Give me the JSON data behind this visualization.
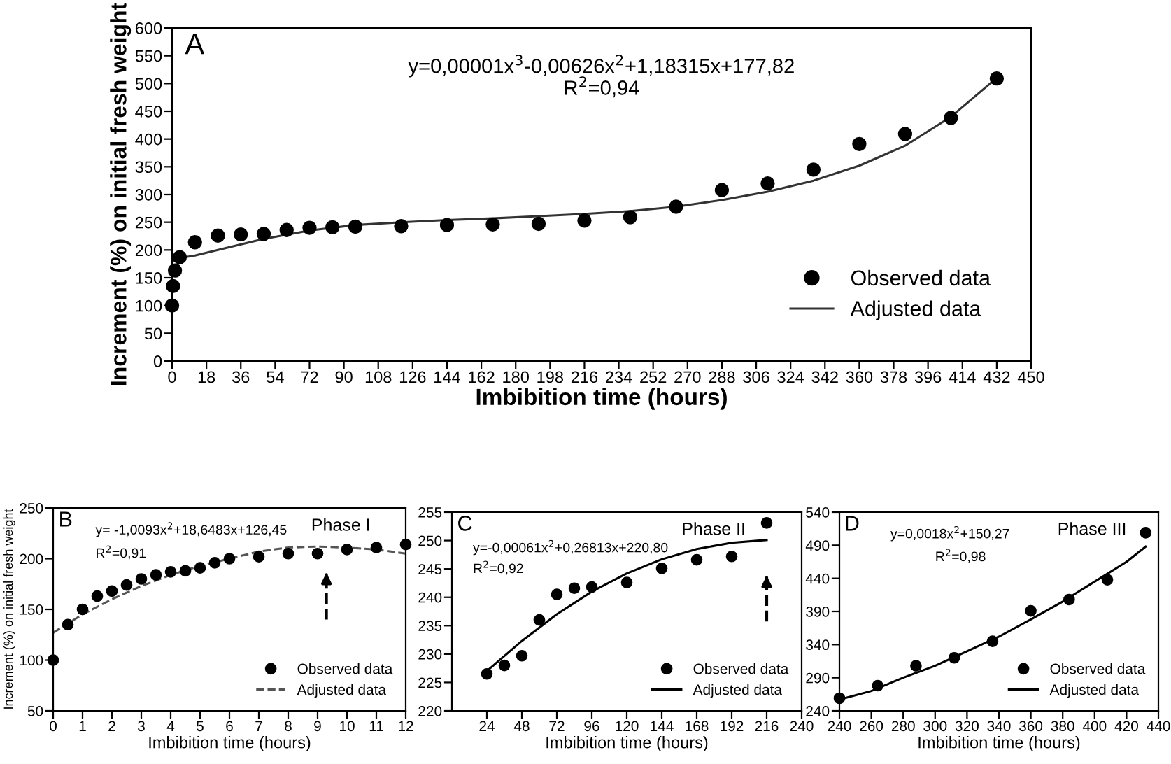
{
  "chart_data": [
    {
      "type": "scatter",
      "xlabel": "Imbibition time (hours)",
      "ylabel": "Increment (%) on initial fresh weight",
      "xlim": [
        0,
        450
      ],
      "ylim": [
        0,
        600
      ],
      "xticks": [
        0,
        18,
        36,
        54,
        72,
        90,
        108,
        126,
        144,
        162,
        180,
        198,
        216,
        234,
        252,
        270,
        288,
        306,
        324,
        342,
        360,
        378,
        396,
        414,
        432,
        450
      ],
      "yticks": [
        0,
        50,
        100,
        150,
        200,
        250,
        300,
        350,
        400,
        450,
        500,
        550,
        600
      ],
      "annotations": [
        "A",
        "y=0,00001x$^{3}$-0,00626x$^{2}$+1,18315x+177,82",
        "R$^{2}$=0,94"
      ],
      "legend": "bottom right",
      "grid": false,
      "series": [
        {
          "name": "Observed data",
          "marker": "circle",
          "color": "#000000",
          "x": [
            0,
            0.5,
            1.5,
            4,
            12,
            24,
            36,
            48,
            60,
            72,
            84,
            96,
            120,
            144,
            168,
            192,
            216,
            240,
            264,
            288,
            312,
            336,
            360,
            384,
            408,
            432
          ],
          "values": [
            100,
            135,
            163,
            187,
            214,
            226,
            228,
            229,
            236,
            240,
            241,
            242,
            243,
            245,
            246,
            247,
            253,
            259,
            278,
            308,
            320,
            345,
            391,
            409,
            438,
            509
          ]
        },
        {
          "name": "Adjusted data",
          "type": "line",
          "line_style": "solid",
          "color": "#333333",
          "x": [
            0,
            3,
            12,
            24,
            48,
            72,
            96,
            120,
            144,
            168,
            192,
            216,
            240,
            264,
            288,
            312,
            336,
            360,
            384,
            408,
            432
          ],
          "values": [
            178,
            185,
            190,
            200,
            220,
            235,
            245,
            250,
            254,
            257,
            261,
            265,
            270,
            278,
            290,
            305,
            325,
            352,
            388,
            440,
            510
          ]
        }
      ]
    },
    {
      "type": "scatter",
      "xlabel": "Imbibition time (hours)",
      "ylabel": "Increment (%) on initial fresh weight",
      "xlim": [
        0,
        12
      ],
      "ylim": [
        50,
        250
      ],
      "xticks": [
        0,
        1,
        2,
        3,
        4,
        5,
        6,
        7,
        8,
        9,
        10,
        11,
        12
      ],
      "yticks": [
        50,
        100,
        150,
        200,
        250
      ],
      "annotations": [
        "B",
        "y= -1,0093x$^{2}$+18,6483x+126,45",
        "R$^{2}$=0,91",
        "Phase I"
      ],
      "ref_lines": [
        {
          "axis": "x",
          "value": 9.3,
          "line_style": "dashed",
          "color": "#000000"
        }
      ],
      "legend": "bottom right",
      "grid": false,
      "series": [
        {
          "name": "Observed data",
          "marker": "circle",
          "color": "#000000",
          "x": [
            0,
            0.5,
            1,
            1.5,
            2,
            2.5,
            3,
            3.5,
            4,
            4.5,
            5,
            5.5,
            6,
            7,
            8,
            9,
            10,
            11,
            12
          ],
          "values": [
            100,
            135,
            150,
            163,
            168,
            174,
            180,
            184,
            187,
            188,
            191,
            196,
            200,
            202,
            205,
            205,
            209,
            211,
            214
          ]
        },
        {
          "name": "Adjusted data",
          "type": "line",
          "line_style": "dashed",
          "color": "#555555",
          "x": [
            0,
            1,
            2,
            3,
            4,
            5,
            6,
            7,
            8,
            9,
            10,
            11,
            12
          ],
          "values": [
            127,
            145,
            160,
            173,
            184,
            193,
            200,
            207,
            211,
            212,
            211,
            209,
            205
          ]
        }
      ]
    },
    {
      "type": "scatter",
      "xlabel": "Imbibition time (hours)",
      "xlim": [
        0,
        240
      ],
      "ylim": [
        220,
        255
      ],
      "xticks": [
        24,
        48,
        72,
        96,
        120,
        144,
        168,
        192,
        216,
        240
      ],
      "yticks": [
        220,
        225,
        230,
        235,
        240,
        245,
        250,
        255
      ],
      "annotations": [
        "C",
        "y=-0,00061x$^{2}$+0,26813x+220,80",
        "R$^{2}$=0,92",
        "Phase II"
      ],
      "ref_lines": [
        {
          "axis": "x",
          "value": 216,
          "line_style": "dashed",
          "color": "#000000"
        }
      ],
      "legend": "bottom right",
      "grid": false,
      "series": [
        {
          "name": "Observed data",
          "marker": "circle",
          "color": "#000000",
          "x": [
            24,
            36,
            48,
            60,
            72,
            84,
            96,
            120,
            144,
            168,
            192,
            216
          ],
          "values": [
            226.5,
            228,
            229.7,
            236,
            240.5,
            241.6,
            241.8,
            242.6,
            245.1,
            246.6,
            247.2,
            253.1
          ]
        },
        {
          "name": "Adjusted data",
          "type": "line",
          "line_style": "solid",
          "color": "#000000",
          "x": [
            24,
            48,
            72,
            96,
            120,
            144,
            168,
            192,
            216
          ],
          "values": [
            227,
            232.3,
            237,
            241,
            244.2,
            246.7,
            248.5,
            249.6,
            250.1
          ]
        }
      ]
    },
    {
      "type": "scatter",
      "xlabel": "Imbibition time (hours)",
      "xlim": [
        240,
        440
      ],
      "ylim": [
        240,
        540
      ],
      "xticks": [
        240,
        260,
        280,
        300,
        320,
        340,
        360,
        380,
        400,
        420,
        440
      ],
      "yticks": [
        240,
        290,
        340,
        390,
        440,
        490,
        540
      ],
      "annotations": [
        "D",
        "y=0,0018x$^{2}$+150,27",
        "R$^{2}$=0,98",
        "Phase III"
      ],
      "legend": "bottom right",
      "grid": false,
      "series": [
        {
          "name": "Observed data",
          "marker": "circle",
          "color": "#000000",
          "x": [
            240,
            264,
            288,
            312,
            336,
            360,
            384,
            408,
            432
          ],
          "values": [
            259,
            278,
            308,
            320,
            345,
            391,
            408,
            438,
            509
          ]
        },
        {
          "name": "Adjusted data",
          "type": "line",
          "line_style": "solid",
          "color": "#000000",
          "x": [
            240,
            260,
            280,
            300,
            320,
            340,
            360,
            380,
            400,
            420,
            432
          ],
          "values": [
            257,
            270,
            290,
            308,
            330,
            352,
            378,
            405,
            435,
            465,
            488
          ]
        }
      ]
    }
  ]
}
